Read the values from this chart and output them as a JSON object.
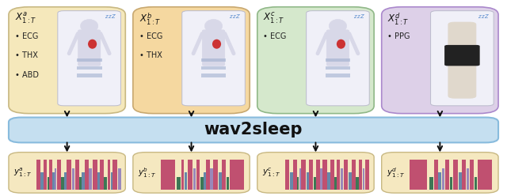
{
  "fig_width": 6.4,
  "fig_height": 2.48,
  "dpi": 100,
  "bg_color": "#ffffff",
  "input_boxes": [
    {
      "color": "#f5e8bb",
      "edge": "#c8b882",
      "label": "X_{1:T}^{a}",
      "items": [
        "ECG",
        "THX",
        "ABD"
      ]
    },
    {
      "color": "#f5d8a0",
      "edge": "#c8a870",
      "label": "X_{1:T}^{b}",
      "items": [
        "ECG",
        "THX"
      ]
    },
    {
      "color": "#d5e8cc",
      "edge": "#90b888",
      "label": "X_{1:T}^{c}",
      "items": [
        "ECG"
      ]
    },
    {
      "color": "#ddd0e8",
      "edge": "#aa88cc",
      "label": "X_{1:T}^{d}",
      "items": [
        "PPG"
      ]
    }
  ],
  "wav2sleep_color": "#c5dff0",
  "wav2sleep_edge": "#88bbdd",
  "output_box_color": "#f5e8c0",
  "output_box_edge": "#c8b882",
  "arrow_color": "#111111",
  "zzz_color": "#5588cc",
  "body_color": "#d8d8e8",
  "heart_color": "#cc3333",
  "belt_color": "#99aacc",
  "hypno_colors": [
    "#c05070",
    "#6688aa",
    "#3d7755",
    "#9988bb",
    "#dd88aa",
    "#224488",
    "#336644"
  ],
  "img_box_color": "#f0f0f8",
  "img_box_edge": "#bbbbcc",
  "wrist_color": "#e0d8cc",
  "watch_color": "#222222"
}
